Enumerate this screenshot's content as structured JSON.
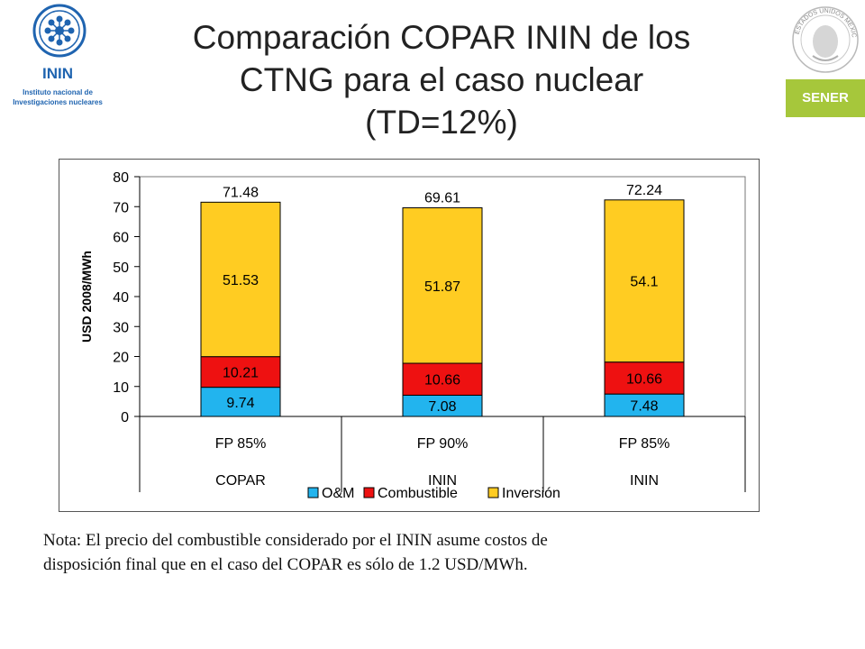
{
  "header": {
    "title_lines": [
      "Comparación COPAR ININ de los",
      "CTNG para el caso nuclear",
      "(TD=12%)"
    ],
    "left_logo": {
      "name": "ININ",
      "subtitle_lines": [
        "Instituto nacional de",
        "Investigaciones nucleares"
      ]
    },
    "right_logo": {
      "seal_text": "ESTADOS UNIDOS MEXICANOS",
      "label": "SENER"
    }
  },
  "colors": {
    "om": "#22b4ee",
    "combustible": "#ee1111",
    "inversion": "#ffcc22",
    "ninin_blue": "#1f64b0",
    "sener_green": "#a6c73b"
  },
  "chart_data": {
    "type": "bar",
    "stacked": true,
    "title": "",
    "ylabel": "USD 2008/MWh",
    "ylim": [
      0,
      80
    ],
    "yticks": [
      0,
      10,
      20,
      30,
      40,
      50,
      60,
      70,
      80
    ],
    "categories": [
      {
        "fp": "FP 85%",
        "source": "COPAR"
      },
      {
        "fp": "FP 90%",
        "source": "ININ"
      },
      {
        "fp": "FP 85%",
        "source": "ININ"
      }
    ],
    "series": [
      {
        "name": "O&M",
        "key": "om",
        "values": [
          9.74,
          7.08,
          7.48
        ],
        "labels": [
          "9.74",
          "7.08",
          "7.48"
        ]
      },
      {
        "name": "Combustible",
        "key": "combustible",
        "values": [
          10.21,
          10.66,
          10.66
        ],
        "labels": [
          "10.21",
          "10.66",
          "10.66"
        ]
      },
      {
        "name": "Inversión",
        "key": "inversion",
        "values": [
          51.53,
          51.87,
          54.1
        ],
        "labels": [
          "51.53",
          "51.87",
          "54.1"
        ]
      }
    ],
    "totals": [
      "71.48",
      "69.61",
      "72.24"
    ],
    "legend": [
      "O&M",
      "Combustible",
      "Inversión"
    ],
    "legend_position": "bottom",
    "grid": false
  },
  "note": {
    "lines": [
      "Nota: El precio del combustible considerado por el ININ asume costos de",
      "disposición final que en el caso del COPAR es sólo de 1.2 USD/MWh."
    ]
  }
}
